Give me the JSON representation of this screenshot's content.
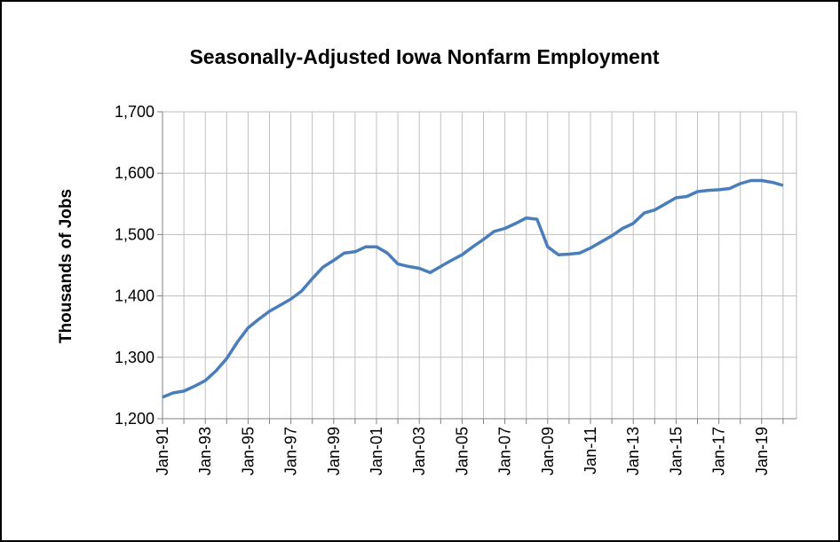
{
  "chart_data": {
    "type": "line",
    "title": "Seasonally-Adjusted Iowa Nonfarm Employment",
    "y_label": "Thousands of Jobs",
    "categories": [
      "Jan-91",
      null,
      null,
      null,
      "Jan-93",
      null,
      null,
      null,
      "Jan-95",
      null,
      null,
      null,
      "Jan-97",
      null,
      null,
      null,
      "Jan-99",
      null,
      null,
      null,
      "Jan-01",
      null,
      null,
      null,
      "Jan-03",
      null,
      null,
      null,
      "Jan-05",
      null,
      null,
      null,
      "Jan-07",
      null,
      null,
      null,
      "Jan-09",
      null,
      null,
      null,
      "Jan-11",
      null,
      null,
      null,
      "Jan-13",
      null,
      null,
      null,
      "Jan-15",
      null,
      null,
      null,
      "Jan-17",
      null,
      null,
      null,
      "Jan-19",
      null,
      null
    ],
    "series": [
      {
        "name": "Iowa Nonfarm Employment",
        "color": "#4a7ebb",
        "values": [
          1235,
          1242,
          1245,
          1253,
          1262,
          1278,
          1298,
          1325,
          1348,
          1362,
          1375,
          1385,
          1395,
          1408,
          1428,
          1447,
          1458,
          1470,
          1472,
          1480,
          1480,
          1470,
          1452,
          1448,
          1445,
          1438,
          1448,
          1458,
          1467,
          1480,
          1492,
          1505,
          1510,
          1518,
          1527,
          1525,
          1480,
          1467,
          1468,
          1470,
          1478,
          1488,
          1498,
          1510,
          1518,
          1535,
          1540,
          1550,
          1560,
          1562,
          1570,
          1572,
          1573,
          1575,
          1583,
          1588,
          1588,
          1585,
          1580
        ]
      }
    ],
    "ylim": [
      1200,
      1700
    ],
    "yticks": [
      {
        "value": 1200,
        "label": "1,200"
      },
      {
        "value": 1300,
        "label": "1,300"
      },
      {
        "value": 1400,
        "label": "1,400"
      },
      {
        "value": 1500,
        "label": "1,500"
      },
      {
        "value": 1600,
        "label": "1,600"
      },
      {
        "value": 1700,
        "label": "1,700"
      }
    ],
    "grid": true
  }
}
